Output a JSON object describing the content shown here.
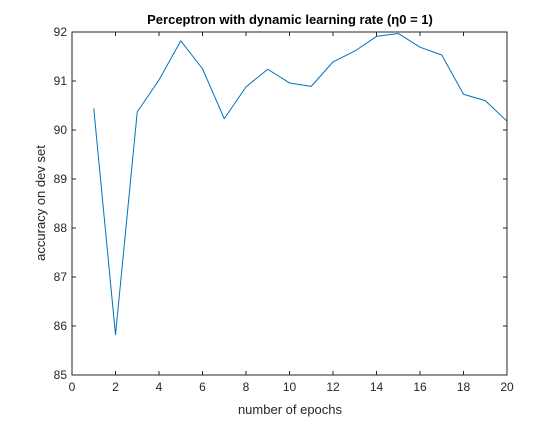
{
  "chart_data": {
    "type": "line",
    "title": "Perceptron with dynamic learning rate (η0 = 1)",
    "xlabel": "number of epochs",
    "ylabel": "accuracy on dev set",
    "xlim": [
      0,
      20
    ],
    "ylim": [
      85,
      92
    ],
    "xticks": [
      0,
      2,
      4,
      6,
      8,
      10,
      12,
      14,
      16,
      18,
      20
    ],
    "yticks": [
      85,
      86,
      87,
      88,
      89,
      90,
      91,
      92
    ],
    "grid": false,
    "line_color": "#0072bd",
    "axis_color": "#262626",
    "series": [
      {
        "x": [
          1,
          2,
          3,
          4,
          5,
          6,
          7,
          8,
          9,
          10,
          11,
          12,
          13,
          14,
          15,
          16,
          17,
          18,
          19,
          20
        ],
        "values": [
          90.44,
          85.82,
          90.37,
          91.02,
          91.82,
          91.25,
          90.23,
          90.88,
          91.24,
          90.96,
          90.89,
          91.39,
          91.61,
          91.91,
          91.97,
          91.69,
          91.53,
          90.73,
          90.6,
          90.18
        ]
      }
    ]
  }
}
